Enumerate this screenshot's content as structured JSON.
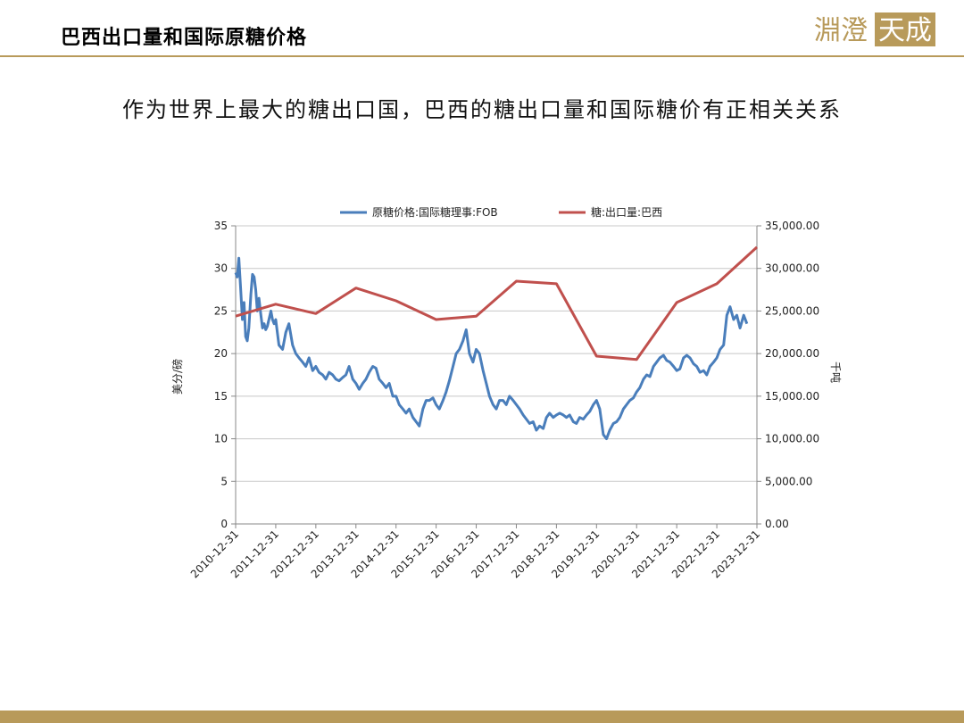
{
  "header": {
    "title": "巴西出口量和国际原糖价格",
    "logo_text_left": "淵澄",
    "logo_text_right": "天成"
  },
  "subtitle": "作为世界上最大的糖出口国，巴西的糖出口量和国际糖价有正相关关系",
  "colors": {
    "accent": "#b89a5a",
    "price_series": "#4a7ebb",
    "export_series": "#c0504d"
  },
  "chart_data": {
    "type": "line",
    "title": "",
    "ylabel_left": "美分/磅",
    "ylabel_right": "千吨",
    "ylim_left": [
      0,
      35
    ],
    "ylim_right": [
      0,
      35000
    ],
    "yticks_left": [
      "0",
      "5",
      "10",
      "15",
      "20",
      "25",
      "30",
      "35"
    ],
    "yticks_right": [
      "0.00",
      "5,000.00",
      "10,000.00",
      "15,000.00",
      "20,000.00",
      "25,000.00",
      "30,000.00",
      "35,000.00"
    ],
    "x_categories": [
      "2010-12-31",
      "2011-12-31",
      "2012-12-31",
      "2013-12-31",
      "2014-12-31",
      "2015-12-31",
      "2016-12-31",
      "2017-12-31",
      "2018-12-31",
      "2019-12-31",
      "2020-12-31",
      "2021-12-31",
      "2022-12-31",
      "2023-12-31"
    ],
    "grid": true,
    "legend_position": "top",
    "series": [
      {
        "name": "原糖价格:国际糖理事:FOB",
        "axis": "left",
        "color": "#4a7ebb",
        "x": [
          2011.0,
          2011.04,
          2011.08,
          2011.12,
          2011.17,
          2011.21,
          2011.25,
          2011.29,
          2011.33,
          2011.38,
          2011.42,
          2011.46,
          2011.5,
          2011.54,
          2011.58,
          2011.63,
          2011.67,
          2011.71,
          2011.75,
          2011.79,
          2011.83,
          2011.88,
          2011.92,
          2011.96,
          2012.0,
          2012.08,
          2012.17,
          2012.25,
          2012.33,
          2012.42,
          2012.5,
          2012.58,
          2012.67,
          2012.75,
          2012.83,
          2012.92,
          2013.0,
          2013.08,
          2013.17,
          2013.25,
          2013.33,
          2013.42,
          2013.5,
          2013.58,
          2013.67,
          2013.75,
          2013.83,
          2013.92,
          2014.0,
          2014.08,
          2014.17,
          2014.25,
          2014.33,
          2014.42,
          2014.5,
          2014.58,
          2014.67,
          2014.75,
          2014.83,
          2014.92,
          2015.0,
          2015.08,
          2015.17,
          2015.25,
          2015.33,
          2015.42,
          2015.5,
          2015.58,
          2015.67,
          2015.75,
          2015.83,
          2015.92,
          2016.0,
          2016.08,
          2016.17,
          2016.25,
          2016.33,
          2016.42,
          2016.5,
          2016.58,
          2016.67,
          2016.75,
          2016.83,
          2016.92,
          2017.0,
          2017.08,
          2017.17,
          2017.25,
          2017.33,
          2017.42,
          2017.5,
          2017.58,
          2017.67,
          2017.75,
          2017.83,
          2017.92,
          2018.0,
          2018.08,
          2018.17,
          2018.25,
          2018.33,
          2018.42,
          2018.5,
          2018.58,
          2018.67,
          2018.75,
          2018.83,
          2018.92,
          2019.0,
          2019.08,
          2019.17,
          2019.25,
          2019.33,
          2019.42,
          2019.5,
          2019.58,
          2019.67,
          2019.75,
          2019.83,
          2019.92,
          2020.0,
          2020.08,
          2020.17,
          2020.25,
          2020.33,
          2020.42,
          2020.5,
          2020.58,
          2020.67,
          2020.75,
          2020.83,
          2020.92,
          2021.0,
          2021.08,
          2021.17,
          2021.25,
          2021.33,
          2021.42,
          2021.5,
          2021.58,
          2021.67,
          2021.75,
          2021.83,
          2021.92,
          2022.0,
          2022.08,
          2022.17,
          2022.25,
          2022.33,
          2022.42,
          2022.5,
          2022.58,
          2022.67,
          2022.75,
          2022.83,
          2022.92,
          2023.0,
          2023.08,
          2023.17,
          2023.25,
          2023.33,
          2023.42,
          2023.5,
          2023.58,
          2023.67,
          2023.75
        ],
        "y": [
          29.5,
          29.0,
          31.2,
          28.0,
          24.0,
          26.0,
          22.0,
          21.5,
          23.0,
          27.0,
          29.3,
          29.0,
          27.5,
          25.0,
          26.5,
          24.5,
          23.0,
          23.5,
          22.8,
          23.2,
          24.0,
          25.0,
          24.0,
          23.5,
          24.0,
          21.0,
          20.5,
          22.5,
          23.5,
          21.0,
          20.0,
          19.5,
          19.0,
          18.5,
          19.5,
          18.0,
          18.5,
          17.8,
          17.5,
          17.0,
          17.8,
          17.5,
          17.0,
          16.8,
          17.2,
          17.5,
          18.5,
          17.0,
          16.5,
          15.8,
          16.5,
          17.0,
          17.8,
          18.5,
          18.3,
          17.0,
          16.5,
          16.0,
          16.5,
          15.0,
          15.0,
          14.0,
          13.5,
          13.0,
          13.5,
          12.5,
          12.0,
          11.5,
          13.5,
          14.5,
          14.5,
          14.8,
          14.0,
          13.5,
          14.5,
          15.5,
          16.8,
          18.5,
          20.0,
          20.5,
          21.5,
          22.8,
          20.0,
          19.0,
          20.5,
          20.0,
          18.0,
          16.5,
          15.0,
          14.0,
          13.5,
          14.5,
          14.5,
          14.0,
          15.0,
          14.5,
          14.0,
          13.5,
          12.8,
          12.3,
          11.8,
          12.0,
          11.0,
          11.5,
          11.2,
          12.5,
          13.0,
          12.5,
          12.8,
          13.0,
          12.8,
          12.5,
          12.8,
          12.0,
          11.8,
          12.5,
          12.3,
          12.8,
          13.2,
          14.0,
          14.5,
          13.5,
          10.5,
          10.0,
          11.0,
          11.8,
          12.0,
          12.5,
          13.5,
          14.0,
          14.5,
          14.8,
          15.5,
          16.0,
          17.0,
          17.5,
          17.3,
          18.5,
          19.0,
          19.5,
          19.8,
          19.2,
          19.0,
          18.5,
          18.0,
          18.2,
          19.5,
          19.8,
          19.5,
          18.8,
          18.5,
          17.8,
          18.0,
          17.5,
          18.5,
          19.0,
          19.5,
          20.5,
          21.0,
          24.5,
          25.5,
          24.0,
          24.5,
          23.0,
          24.5,
          23.5
        ]
      },
      {
        "name": "糖:出口量:巴西",
        "axis": "right",
        "color": "#c0504d",
        "x": [
          2011.0,
          2012.0,
          2013.0,
          2014.0,
          2015.0,
          2016.0,
          2017.0,
          2018.0,
          2019.0,
          2020.0,
          2021.0,
          2022.0,
          2023.0,
          2024.0
        ],
        "y": [
          24400,
          25800,
          24700,
          27700,
          26200,
          24000,
          24400,
          28500,
          28200,
          19700,
          19300,
          26000,
          28200,
          32500
        ]
      }
    ]
  }
}
